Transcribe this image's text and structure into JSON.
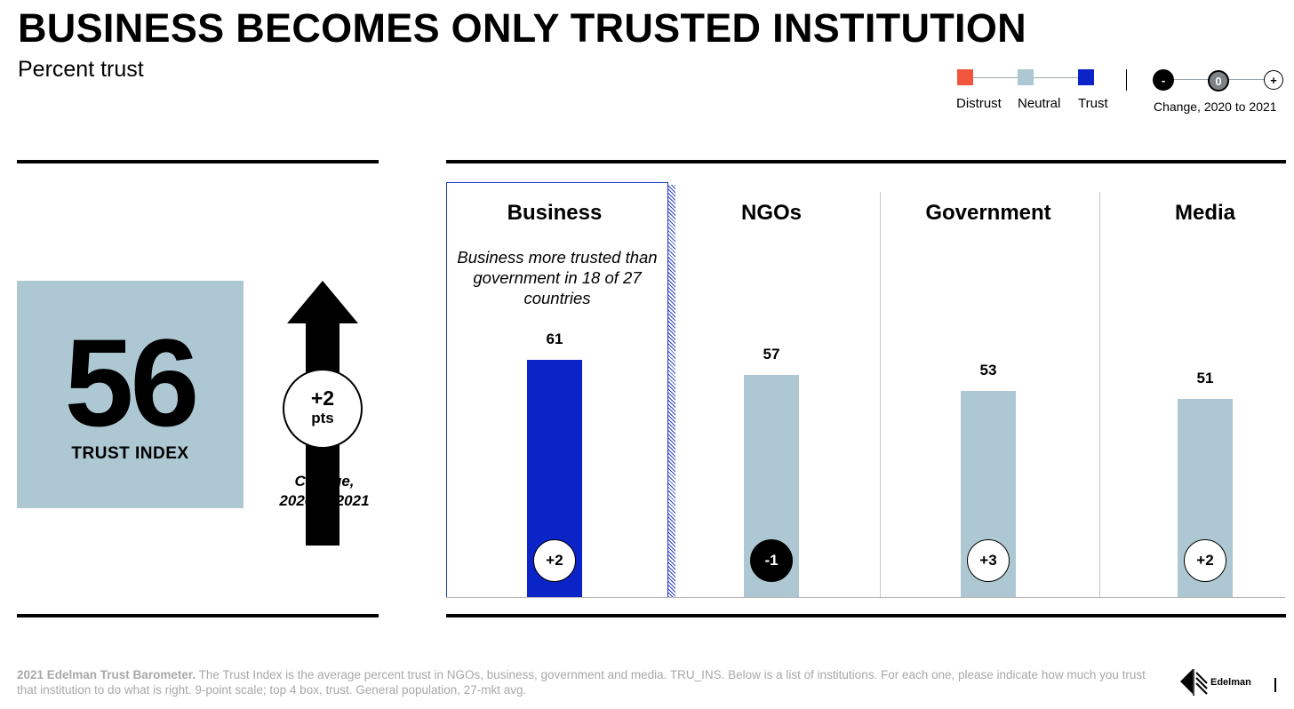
{
  "header": {
    "title": "BUSINESS BECOMES ONLY TRUSTED INSTITUTION",
    "subtitle": "Percent trust"
  },
  "legend": {
    "distrust_label": "Distrust",
    "neutral_label": "Neutral",
    "trust_label": "Trust",
    "distrust_color": "#f2553d",
    "neutral_color": "#adc8d3",
    "trust_color": "#0a24c8",
    "change_minus": "-",
    "change_zero": "0",
    "change_plus": "+",
    "change_label": "Change, 2020 to 2021"
  },
  "trust_index": {
    "value": "56",
    "label": "TRUST INDEX",
    "change_value": "+2",
    "change_unit": "pts",
    "change_caption_line1": "Change,",
    "change_caption_line2": "2020 to 2021"
  },
  "chart_data": {
    "type": "bar",
    "categories": [
      "Business",
      "NGOs",
      "Government",
      "Media"
    ],
    "values": [
      61,
      57,
      53,
      51
    ],
    "changes": [
      "+2",
      "-1",
      "+3",
      "+2"
    ],
    "bar_levels": [
      "Trust",
      "Neutral",
      "Neutral",
      "Neutral"
    ],
    "highlight_category": "Business",
    "highlight_note": "Business more trusted than government in 18 of 27 countries",
    "ylim": [
      0,
      100
    ]
  },
  "footnote": {
    "lead": "2021 Edelman Trust Barometer.",
    "text": " The Trust Index is the average percent trust in NGOs, business, government and media. TRU_INS. Below is a list of institutions. For each one, please indicate how much you trust that institution to do what is right. 9-point scale; top 4 box, trust. General population, 27-mkt avg."
  },
  "brand": {
    "logo_text": "Edelman"
  }
}
